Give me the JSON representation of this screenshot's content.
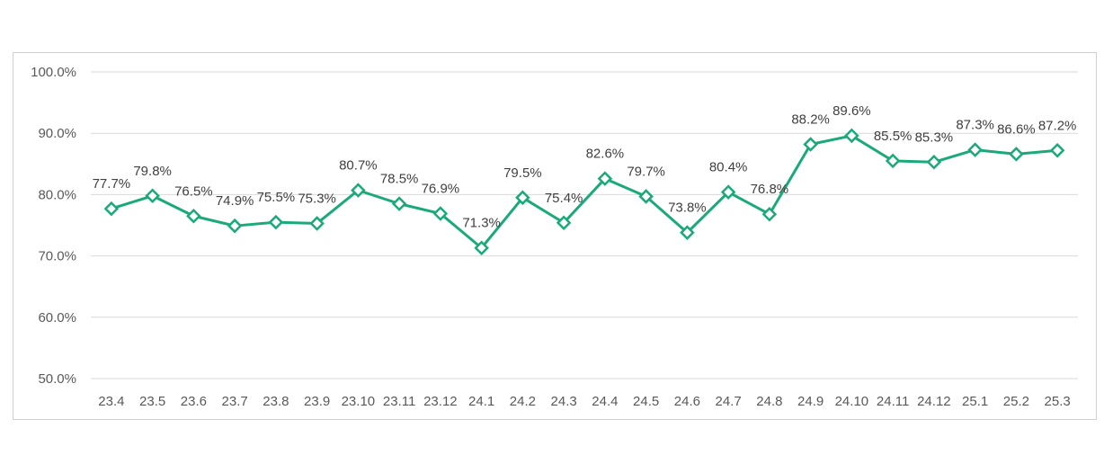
{
  "chart_data": {
    "type": "line",
    "categories": [
      "23.4",
      "23.5",
      "23.6",
      "23.7",
      "23.8",
      "23.9",
      "23.10",
      "23.11",
      "23.12",
      "24.1",
      "24.2",
      "24.3",
      "24.4",
      "24.5",
      "24.6",
      "24.7",
      "24.8",
      "24.9",
      "24.10",
      "24.11",
      "24.12",
      "25.1",
      "25.2",
      "25.3"
    ],
    "series": [
      {
        "values": [
          77.7,
          79.8,
          76.5,
          74.9,
          75.5,
          75.3,
          80.7,
          78.5,
          76.9,
          71.3,
          79.5,
          75.4,
          82.6,
          79.7,
          73.8,
          80.4,
          76.8,
          88.2,
          89.6,
          85.5,
          85.3,
          87.3,
          86.6,
          87.2
        ],
        "data_labels": [
          "77.7%",
          "79.8%",
          "76.5%",
          "74.9%",
          "75.5%",
          "75.3%",
          "80.7%",
          "78.5%",
          "76.9%",
          "71.3%",
          "79.5%",
          "75.4%",
          "82.6%",
          "79.7%",
          "73.8%",
          "80.4%",
          "76.8%",
          "88.2%",
          "89.6%",
          "85.5%",
          "85.3%",
          "87.3%",
          "86.6%",
          "87.2%"
        ],
        "color": "#1aaa7a",
        "marker": "diamond-open"
      }
    ],
    "ylim": [
      50,
      100
    ],
    "y_ticks": [
      50,
      60,
      70,
      80,
      90,
      100
    ],
    "y_tick_labels": [
      "50.0%",
      "60.0%",
      "70.0%",
      "80.0%",
      "90.0%",
      "100.0%"
    ],
    "title": "",
    "xlabel": "",
    "ylabel": "",
    "grid": "horizontal",
    "gridline_color": "#d9d9d9",
    "legend": "none"
  }
}
